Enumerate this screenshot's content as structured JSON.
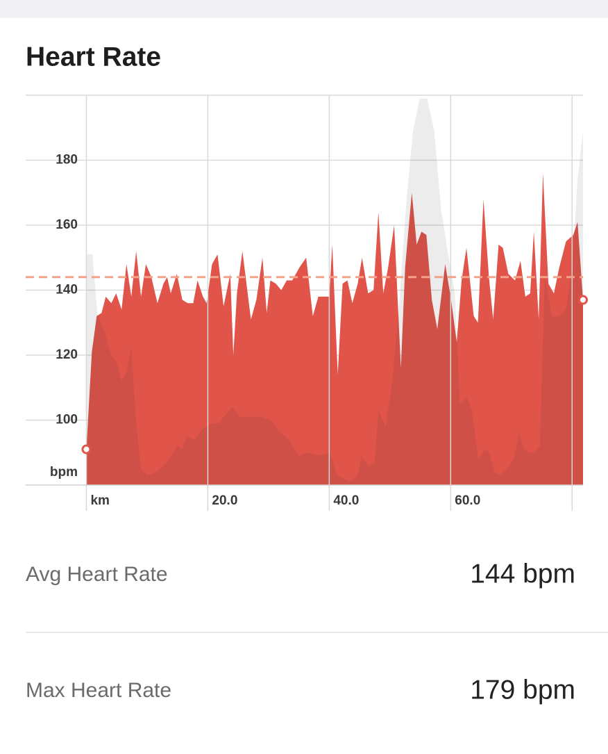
{
  "header": {
    "title": "Heart Rate"
  },
  "chart_data": {
    "type": "area",
    "x_label": "km",
    "y_label": "bpm",
    "xlim": [
      -10,
      81.8
    ],
    "ylim": [
      80,
      200
    ],
    "yticks": [
      100,
      120,
      140,
      160,
      180
    ],
    "xticks": [
      {
        "value": 20,
        "label": "20.0"
      },
      {
        "value": 40,
        "label": "40.0"
      },
      {
        "value": 60,
        "label": "60.0"
      }
    ],
    "xgrid": [
      0,
      20,
      40,
      60,
      80
    ],
    "grid": true,
    "series": [
      {
        "color": "#e0544a",
        "x": [
          0,
          0.9,
          1.7,
          2.5,
          3.2,
          4.1,
          4.9,
          5.8,
          6.6,
          7.4,
          8.2,
          9.0,
          9.8,
          10.7,
          11.7,
          12.7,
          13.3,
          13.9,
          14.9,
          15.8,
          16.7,
          17.6,
          18.3,
          19.2,
          19.8,
          20.7,
          21.6,
          22.6,
          23.7,
          24.2,
          24.8,
          25.7,
          27.1,
          28.0,
          29.0,
          29.7,
          30.3,
          31.2,
          32.1,
          33.0,
          33.9,
          35.1,
          36.2,
          37.3,
          38.2,
          39.1,
          40.0,
          40.5,
          41.4,
          42.2,
          43.0,
          43.8,
          44.7,
          45.4,
          46.4,
          47.3,
          48.1,
          48.9,
          49.7,
          50.7,
          51.8,
          52.5,
          53.6,
          54.4,
          55.2,
          56.0,
          56.9,
          57.8,
          59.1,
          60.0,
          61.0,
          61.8,
          62.6,
          63.8,
          64.5,
          65.4,
          66.3,
          67.0,
          67.9,
          68.6,
          69.5,
          70.6,
          71.5,
          72.3,
          73.1,
          73.7,
          74.5,
          75.2,
          76.1,
          77.0,
          77.9,
          79.0,
          80.2,
          80.9,
          81.8
        ],
        "values": [
          91,
          121,
          132,
          133,
          138,
          136,
          139,
          134,
          148,
          138,
          152,
          138,
          148,
          144,
          136,
          142,
          144,
          139,
          145,
          137,
          136,
          136,
          143,
          138,
          136,
          148,
          151,
          135,
          145,
          120,
          139,
          152,
          131,
          137,
          150,
          133,
          143,
          142,
          140,
          143,
          143,
          147,
          150,
          132,
          138,
          138,
          138,
          154,
          114,
          142,
          143,
          136,
          142,
          150,
          139,
          140,
          164,
          139,
          147,
          160,
          116,
          147,
          170,
          154,
          158,
          157,
          137,
          128,
          148,
          138,
          124,
          143,
          153,
          132,
          130,
          168,
          144,
          131,
          154,
          153,
          145,
          143,
          149,
          138,
          139,
          158,
          131,
          176,
          142,
          139,
          147,
          155,
          157,
          161,
          137
        ]
      },
      {
        "color": "rgba(40,40,40,0.09)",
        "x": [
          0,
          1.0,
          1.8,
          3.0,
          4.1,
          5.0,
          5.8,
          6.6,
          7.4,
          8.2,
          9.0,
          10.1,
          11.5,
          13.3,
          15.0,
          15.8,
          16.5,
          17.8,
          19.0,
          20.7,
          21.8,
          22.6,
          24.1,
          25.3,
          27.0,
          28.7,
          30.4,
          31.5,
          33.3,
          35.0,
          36.7,
          38.4,
          40.1,
          41.3,
          42.4,
          43.5,
          44.7,
          45.3,
          46.4,
          47.5,
          48.1,
          49.3,
          50.4,
          51.5,
          52.7,
          53.8,
          54.9,
          56.1,
          57.3,
          58.4,
          59.5,
          60.7,
          61.5,
          62.6,
          63.5,
          64.5,
          65.6,
          66.4,
          67.2,
          68.1,
          69.3,
          70.4,
          71.3,
          72.1,
          72.9,
          73.8,
          74.7,
          75.5,
          76.7,
          77.8,
          79.0,
          80.1,
          80.9,
          81.8
        ],
        "values": [
          151,
          151,
          133,
          127,
          120,
          118,
          112,
          115,
          122,
          99,
          85,
          83,
          84,
          87,
          92,
          91,
          95,
          94,
          97,
          99,
          99,
          101,
          104,
          101,
          101,
          101,
          100,
          97,
          94,
          89,
          90,
          89,
          90,
          83,
          82,
          81,
          83,
          89,
          86,
          87,
          103,
          98,
          112,
          135,
          167,
          189,
          199,
          199,
          189,
          165,
          152,
          139,
          105,
          107,
          103,
          88,
          91,
          90,
          84,
          83,
          85,
          88,
          96,
          91,
          90,
          90,
          92,
          144,
          132,
          132,
          134,
          148,
          174,
          189
        ]
      }
    ],
    "avg_line": {
      "value": 144,
      "color": "#f4a28a"
    }
  },
  "stats": [
    {
      "label": "Avg Heart Rate",
      "value": "144 bpm"
    },
    {
      "label": "Max Heart Rate",
      "value": "179 bpm"
    }
  ]
}
